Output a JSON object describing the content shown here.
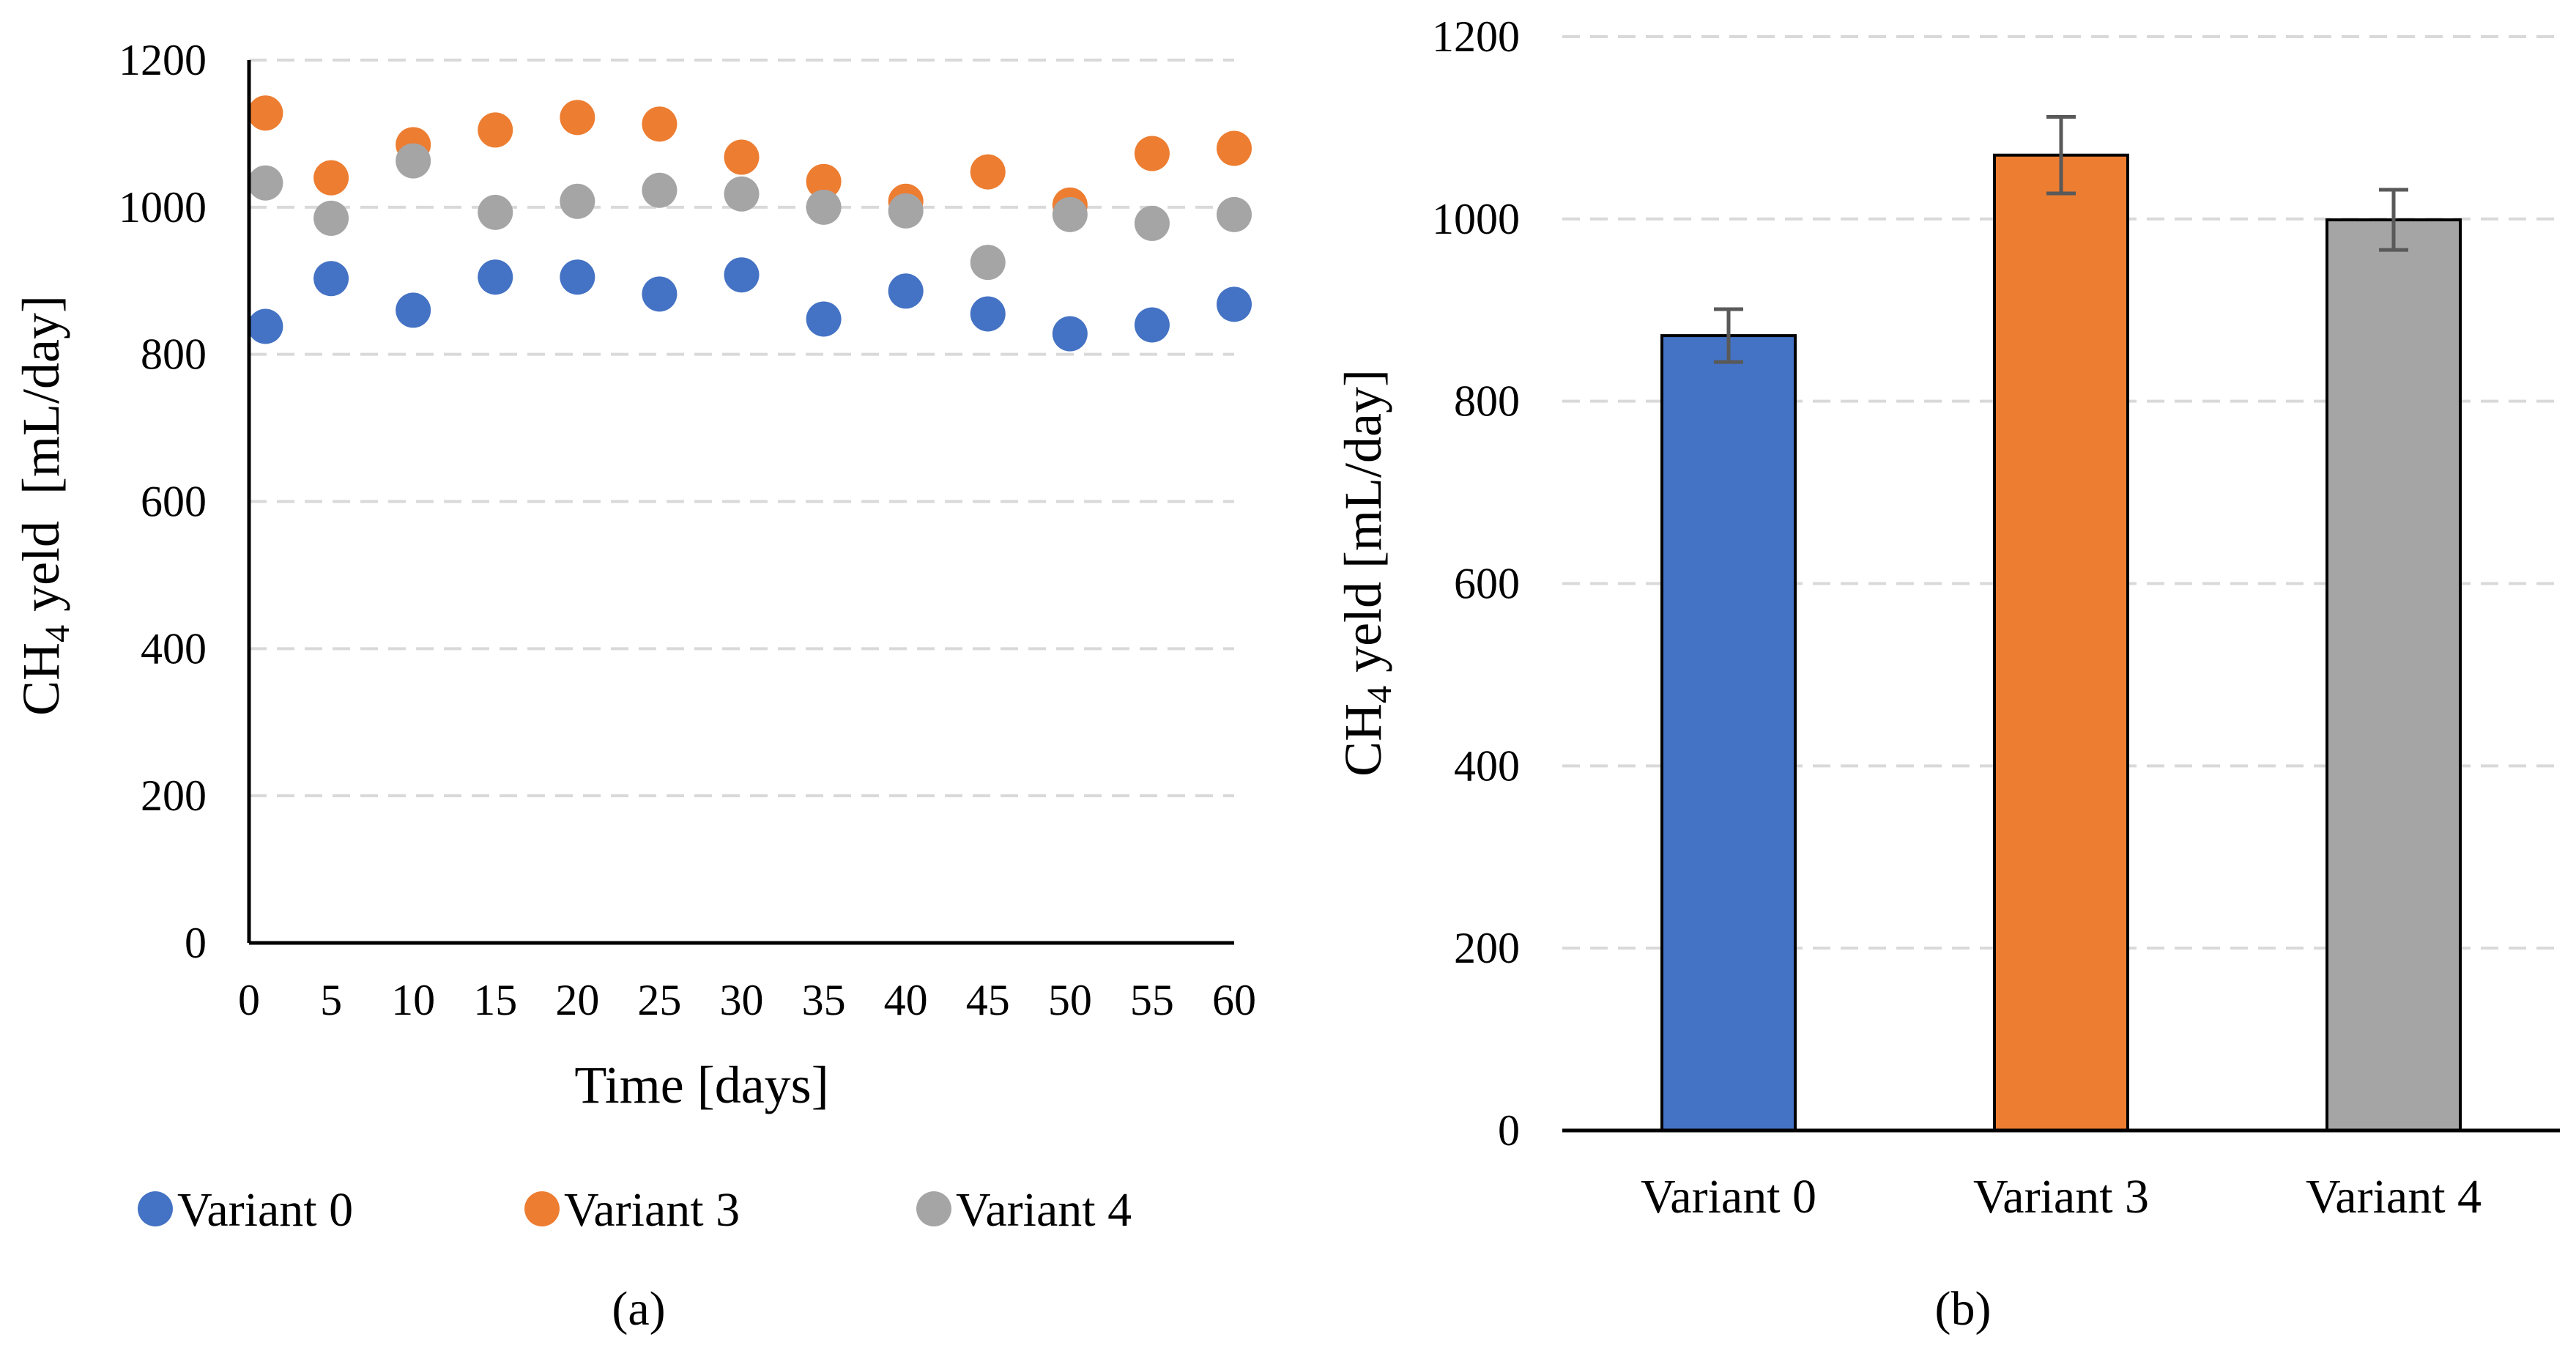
{
  "chart_data": [
    {
      "type": "scatter",
      "panel_label": "(a)",
      "xlabel": "Time [days]",
      "ylabel_main": "CH",
      "ylabel_sub": "4",
      "ylabel_rest": " yeld  [mL/day]",
      "xlim": [
        0,
        60
      ],
      "ylim": [
        0,
        1200
      ],
      "x_ticks": [
        "0",
        "5",
        "10",
        "15",
        "20",
        "25",
        "30",
        "35",
        "40",
        "45",
        "50",
        "55",
        "60"
      ],
      "y_ticks": [
        "0",
        "200",
        "400",
        "600",
        "800",
        "1000",
        "1200"
      ],
      "grid": true,
      "legend_position": "bottom",
      "x": [
        1,
        5,
        10,
        15,
        20,
        25,
        30,
        35,
        40,
        45,
        50,
        55,
        60
      ],
      "series": [
        {
          "name": "Variant 0",
          "color": "#4472c4",
          "values": [
            838,
            903,
            860,
            905,
            905,
            882,
            908,
            848,
            886,
            855,
            828,
            840,
            868
          ]
        },
        {
          "name": "Variant 3",
          "color": "#ed7d31",
          "values": [
            1128,
            1040,
            1085,
            1105,
            1122,
            1113,
            1068,
            1035,
            1008,
            1048,
            1003,
            1073,
            1080
          ]
        },
        {
          "name": "Variant 4",
          "color": "#a5a5a5",
          "values": [
            1033,
            985,
            1063,
            993,
            1008,
            1023,
            1018,
            1000,
            995,
            925,
            990,
            978,
            990
          ]
        }
      ]
    },
    {
      "type": "bar",
      "panel_label": "(b)",
      "ylabel_main": "CH",
      "ylabel_sub": "4",
      "ylabel_rest": " yeld [mL/day]",
      "xlabel": "",
      "ylim": [
        0,
        1200
      ],
      "y_ticks": [
        "0",
        "200",
        "400",
        "600",
        "800",
        "1000",
        "1200"
      ],
      "grid": true,
      "categories": [
        "Variant 0",
        "Variant 3",
        "Variant 4"
      ],
      "values": [
        872,
        1070,
        999
      ],
      "errors": [
        29,
        42,
        33
      ],
      "colors": [
        "#4472c4",
        "#ed7d31",
        "#a5a5a5"
      ]
    }
  ]
}
